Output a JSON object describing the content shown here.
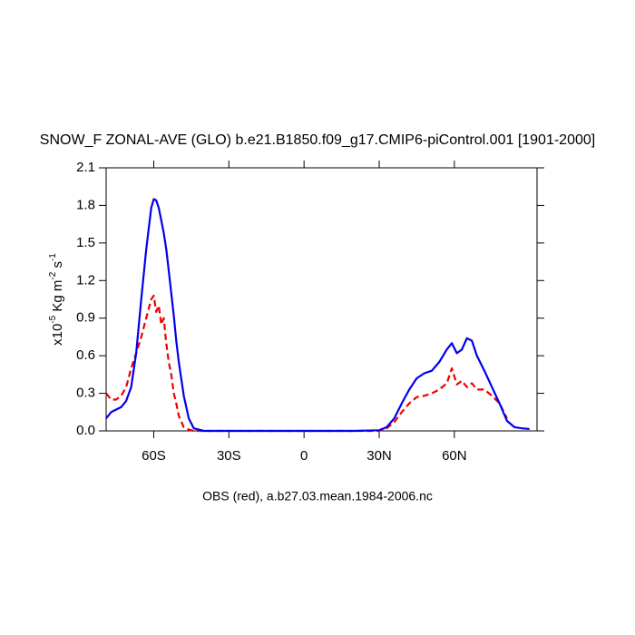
{
  "chart_data": {
    "type": "line",
    "title": "SNOW_F ZONAL-AVE (GLO) b.e21.B1850.f09_g17.CMIP6-piControl.001 [1901-2000]",
    "ylabel_parts": [
      "x10",
      "-5",
      " Kg m",
      "-2",
      " s",
      "-1"
    ],
    "xlabel": "OBS (red), a.b27.03.mean.1984-2006.nc",
    "x": [
      -79,
      -77,
      -75,
      -73,
      -71,
      -69,
      -67,
      -65,
      -63,
      -61,
      -60,
      -59,
      -58,
      -57,
      -56,
      -55,
      -54,
      -53,
      -52,
      -51,
      -50,
      -48,
      -46,
      -44,
      -40,
      -30,
      -20,
      -10,
      0,
      10,
      20,
      30,
      33,
      36,
      39,
      42,
      45,
      48,
      51,
      54,
      57,
      59,
      61,
      63,
      65,
      67,
      69,
      72,
      75,
      78,
      81,
      84,
      87,
      90
    ],
    "series": [
      {
        "color": "#0000ee",
        "dash": false,
        "values": [
          0.1,
          0.15,
          0.17,
          0.19,
          0.24,
          0.35,
          0.62,
          1.05,
          1.45,
          1.78,
          1.85,
          1.84,
          1.78,
          1.68,
          1.58,
          1.45,
          1.28,
          1.1,
          0.92,
          0.72,
          0.55,
          0.28,
          0.1,
          0.02,
          0,
          0,
          0,
          0,
          0,
          0,
          0,
          0.005,
          0.03,
          0.1,
          0.22,
          0.33,
          0.42,
          0.46,
          0.48,
          0.55,
          0.65,
          0.7,
          0.62,
          0.65,
          0.74,
          0.72,
          0.6,
          0.48,
          0.35,
          0.22,
          0.08,
          0.03,
          0.02,
          0.015
        ]
      },
      {
        "color": "#ee0000",
        "dash": true,
        "values": [
          0.3,
          0.25,
          0.25,
          0.28,
          0.35,
          0.5,
          0.62,
          0.75,
          0.9,
          1.05,
          1.08,
          0.95,
          1.0,
          0.85,
          0.9,
          0.7,
          0.55,
          0.45,
          0.3,
          0.22,
          0.12,
          0.03,
          0.01,
          0,
          0,
          0,
          0,
          0,
          0,
          0,
          0,
          0,
          0.02,
          0.07,
          0.15,
          0.22,
          0.27,
          0.28,
          0.3,
          0.33,
          0.38,
          0.5,
          0.37,
          0.4,
          0.35,
          0.38,
          0.33,
          0.33,
          0.28,
          0.22,
          0.1,
          null,
          null,
          null
        ]
      }
    ],
    "xlim": [
      -79,
      93
    ],
    "xticks": [
      {
        "value": -60,
        "label": "60S"
      },
      {
        "value": -30,
        "label": "30S"
      },
      0,
      {
        "value": 30,
        "label": "30N"
      },
      {
        "value": 60,
        "label": "60N"
      }
    ],
    "ylim": [
      0,
      2.1
    ],
    "yticks": [
      {
        "value": 0,
        "label": "0.0"
      },
      0.3,
      0.6,
      0.9,
      1.2,
      1.5,
      1.8,
      2.1
    ]
  }
}
